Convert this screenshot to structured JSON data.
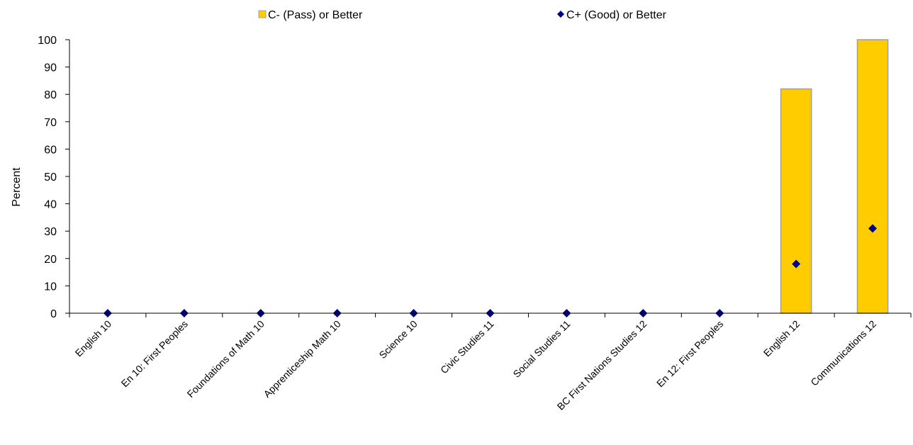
{
  "chart_data": {
    "type": "bar",
    "categories": [
      "English 10",
      "En 10: First Peoples",
      "Foundations of Math 10",
      "Apprenticeship Math 10",
      "Science 10",
      "Civic Studies 11",
      "Social Studies 11",
      "BC First Nations Studies 12",
      "En 12: First Peoples",
      "English 12",
      "Communications 12"
    ],
    "series": [
      {
        "name": "C- (Pass) or Better",
        "kind": "bar",
        "color": "#FFCC00",
        "values": [
          0,
          0,
          0,
          0,
          0,
          0,
          0,
          0,
          0,
          82,
          100
        ]
      },
      {
        "name": "C+ (Good) or Better",
        "kind": "marker",
        "marker": "diamond",
        "color": "#000080",
        "values": [
          0,
          0,
          0,
          0,
          0,
          0,
          0,
          0,
          0,
          18,
          31
        ]
      }
    ],
    "ylabel": "Percent",
    "xlabel": "",
    "ylim": [
      0,
      100
    ],
    "yticks": [
      0,
      10,
      20,
      30,
      40,
      50,
      60,
      70,
      80,
      90,
      100
    ],
    "grid": false,
    "legend_position": "top"
  }
}
